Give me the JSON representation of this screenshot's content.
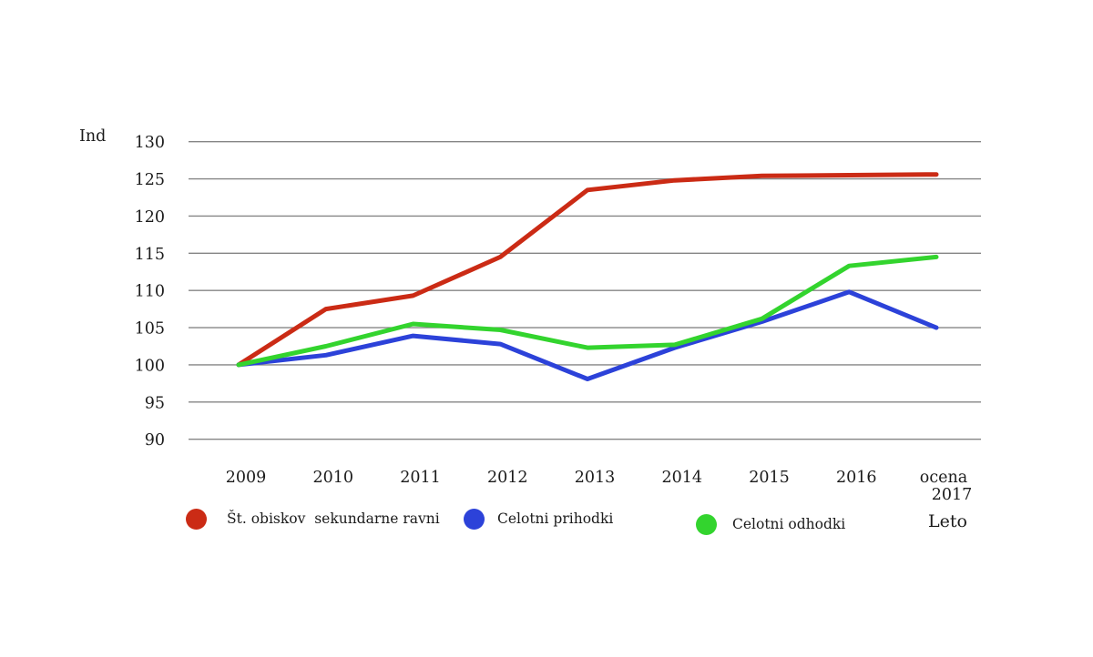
{
  "chart_data": {
    "type": "line",
    "title": "",
    "ylabel": "Ind",
    "xlabel": "Leto",
    "categories": [
      "2009",
      "2010",
      "2011",
      "2012",
      "2013",
      "2014",
      "2015",
      "2016",
      "ocena\n2017"
    ],
    "y_ticks": [
      130,
      125,
      120,
      115,
      110,
      105,
      100,
      95,
      90
    ],
    "ylim": [
      90,
      130
    ],
    "grid": "horizontal-only",
    "legend_position": "bottom",
    "background": "#ffffff",
    "gridline_color": "#858585",
    "text_color": "#1b1b1b",
    "series": [
      {
        "name": "Št. obiskov  sekundarne ravni",
        "color": "#cb2b15",
        "values": [
          100,
          107.5,
          109.3,
          114.5,
          123.5,
          124.8,
          125.4,
          125.5,
          125.6
        ]
      },
      {
        "name": "Celotni prihodki",
        "color": "#2c42d9",
        "values": [
          100,
          101.3,
          103.9,
          102.8,
          98.1,
          102.3,
          105.8,
          109.8,
          105
        ]
      },
      {
        "name": "Celotni odhodki",
        "color": "#33d42e",
        "values": [
          100,
          102.5,
          105.5,
          104.7,
          102.3,
          102.7,
          106.2,
          113.3,
          114.5
        ]
      }
    ]
  }
}
